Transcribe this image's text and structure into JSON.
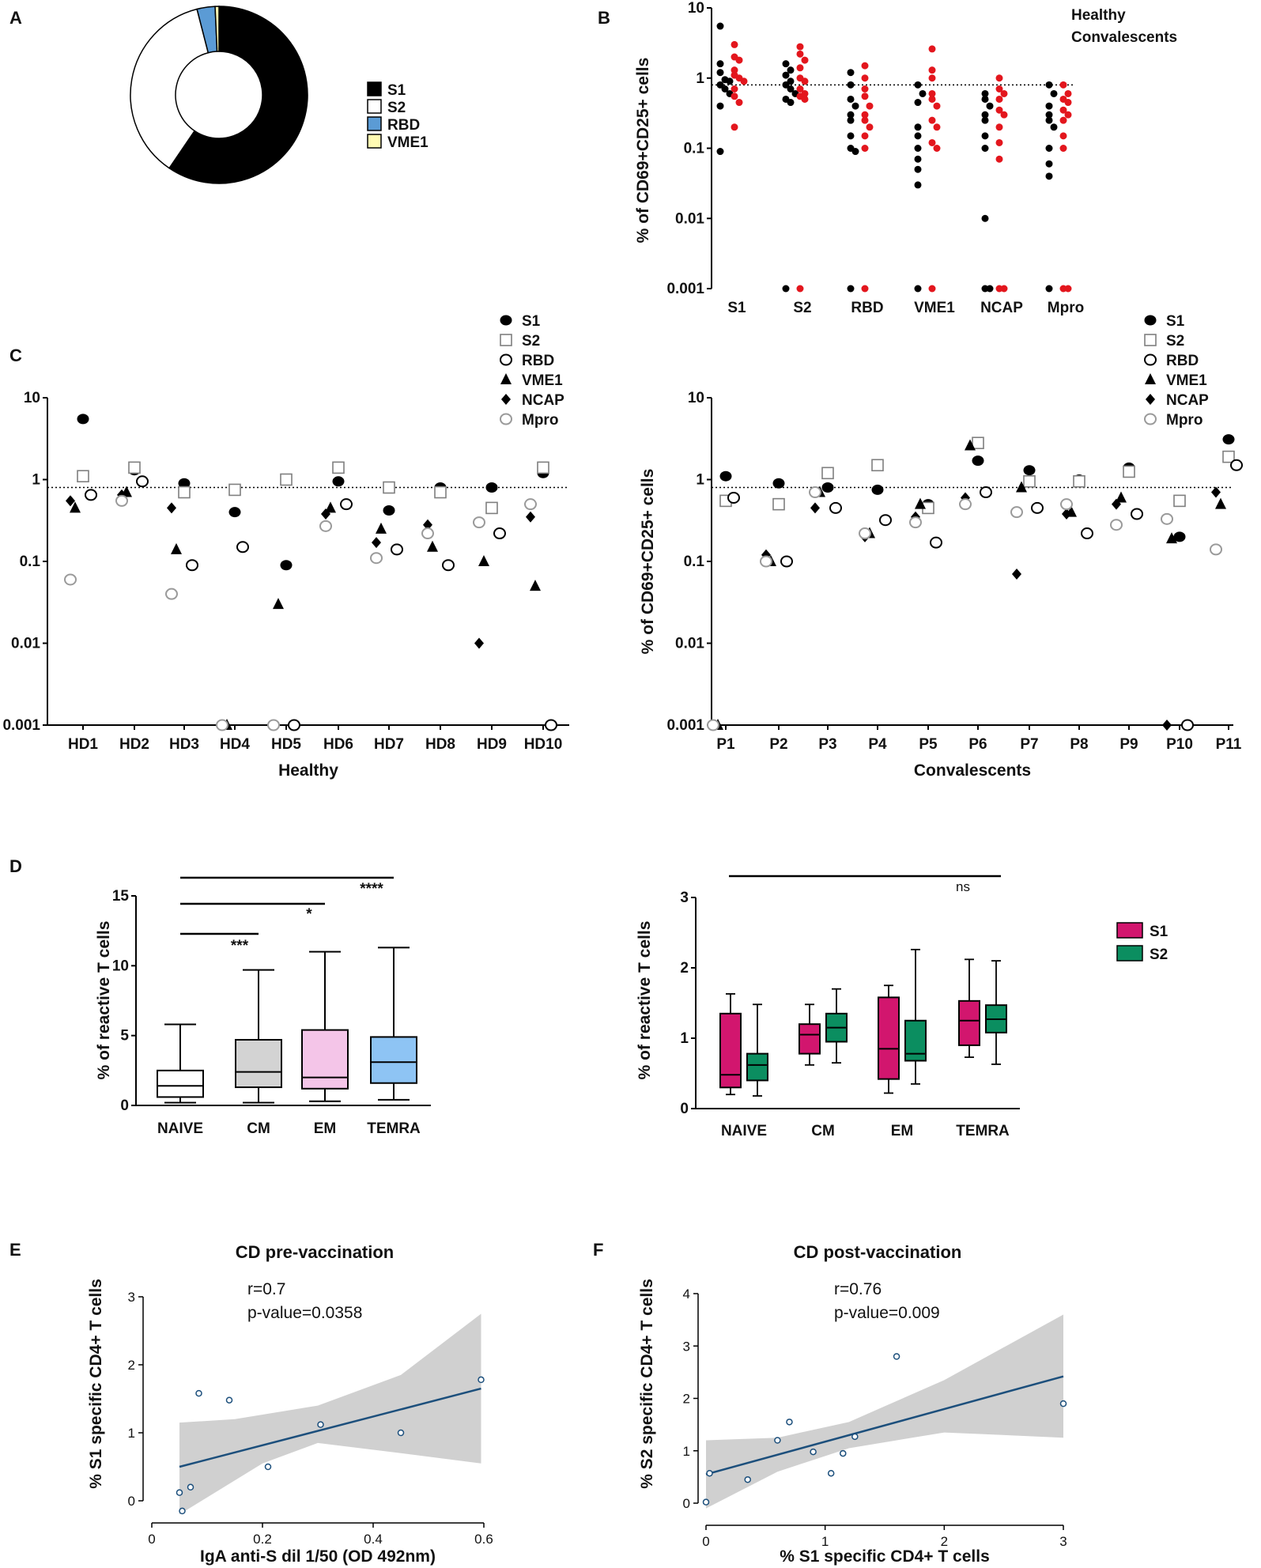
{
  "panels": {
    "A": "A",
    "B": "B",
    "C": "C",
    "D": "D",
    "E": "E",
    "F": "F"
  },
  "colors": {
    "S1": "#000000",
    "S2": "#ffffff",
    "RBD": "#5b9bd5",
    "VME1": "#fffbb3",
    "healthy": "#000000",
    "convalescent": "#e3161d",
    "box_S1": "#d2166e",
    "box_S2": "#0b8e60",
    "naive": "#ffffff",
    "cm": "#d3d3d3",
    "em": "#f4c5e8",
    "temra": "#8ec4f4",
    "fit_line": "#1c4f7c",
    "ci_band": "#d0d0d0"
  },
  "chart_data": [
    {
      "id": "A",
      "type": "pie",
      "donut": true,
      "legend": [
        "S1",
        "S2",
        "RBD",
        "VME1"
      ],
      "values": [
        59.5,
        36.5,
        3.3,
        0.7
      ]
    },
    {
      "id": "B",
      "type": "scatter",
      "yscale": "log",
      "ylabel": "% of CD69+CD25+ cells",
      "yticks": [
        "10",
        "1",
        "0.1",
        "0.01",
        "0.001"
      ],
      "ylim": [
        0.001,
        10
      ],
      "reference_line": 0.8,
      "categories": [
        "S1",
        "S2",
        "RBD",
        "VME1",
        "NCAP",
        "Mpro"
      ],
      "legend": [
        "Healthy",
        "Convalescents"
      ],
      "series": [
        {
          "name": "Healthy",
          "values": [
            [
              5.5,
              1.6,
              1.2,
              0.95,
              0.9,
              0.8,
              0.7,
              0.6,
              0.4,
              0.09
            ],
            [
              1.6,
              1.3,
              1.1,
              0.9,
              0.8,
              0.7,
              0.6,
              0.5,
              0.45,
              0.001
            ],
            [
              1.2,
              0.8,
              0.5,
              0.4,
              0.3,
              0.25,
              0.15,
              0.1,
              0.09,
              0.001
            ],
            [
              0.8,
              0.6,
              0.45,
              0.2,
              0.15,
              0.1,
              0.07,
              0.05,
              0.03,
              0.001
            ],
            [
              0.6,
              0.5,
              0.4,
              0.3,
              0.25,
              0.15,
              0.1,
              0.01,
              0.001,
              0.001
            ],
            [
              0.8,
              0.6,
              0.4,
              0.3,
              0.25,
              0.2,
              0.1,
              0.06,
              0.04,
              0.001
            ]
          ]
        },
        {
          "name": "Convalescents",
          "values": [
            [
              3.0,
              2.0,
              1.8,
              1.3,
              1.1,
              1.0,
              0.9,
              0.7,
              0.55,
              0.45,
              0.2
            ],
            [
              2.8,
              2.2,
              1.8,
              1.4,
              1.0,
              0.9,
              0.7,
              0.6,
              0.55,
              0.5,
              0.001
            ],
            [
              1.5,
              1.0,
              0.7,
              0.55,
              0.4,
              0.3,
              0.25,
              0.2,
              0.15,
              0.1,
              0.001
            ],
            [
              2.6,
              1.3,
              1.0,
              0.6,
              0.5,
              0.4,
              0.25,
              0.2,
              0.12,
              0.1,
              0.001
            ],
            [
              1.0,
              0.7,
              0.6,
              0.5,
              0.35,
              0.3,
              0.2,
              0.12,
              0.07,
              0.001,
              0.001
            ],
            [
              0.8,
              0.6,
              0.5,
              0.45,
              0.35,
              0.3,
              0.25,
              0.15,
              0.1,
              0.001,
              0.001
            ]
          ]
        }
      ]
    },
    {
      "id": "C-left",
      "type": "scatter",
      "yscale": "log",
      "ylabel": "% of CD69+CD25+ cells",
      "xlabel": "Healthy",
      "yticks": [
        "10",
        "1",
        "0.1",
        "0.01",
        "0.001"
      ],
      "ylim": [
        0.001,
        10
      ],
      "reference_line": 0.8,
      "legend": [
        "S1",
        "S2",
        "RBD",
        "VME1",
        "NCAP",
        "Mpro"
      ],
      "categories": [
        "HD1",
        "HD2",
        "HD3",
        "HD4",
        "HD5",
        "HD6",
        "HD7",
        "HD8",
        "HD9",
        "HD10"
      ],
      "series": [
        {
          "name": "S1",
          "values": [
            5.5,
            1.3,
            0.9,
            0.4,
            0.09,
            0.95,
            0.42,
            0.8,
            0.8,
            1.2
          ]
        },
        {
          "name": "S2",
          "values": [
            1.1,
            1.4,
            0.7,
            0.75,
            1.0,
            1.4,
            0.8,
            0.7,
            0.45,
            1.4
          ]
        },
        {
          "name": "RBD",
          "values": [
            0.65,
            0.95,
            0.09,
            0.15,
            0.001,
            0.5,
            0.14,
            0.09,
            0.22,
            0.001
          ]
        },
        {
          "name": "VME1",
          "values": [
            0.45,
            0.7,
            0.14,
            0.001,
            0.03,
            0.45,
            0.25,
            0.15,
            0.1,
            0.05
          ]
        },
        {
          "name": "NCAP",
          "values": [
            0.55,
            0.65,
            0.45,
            0.001,
            0.001,
            0.38,
            0.17,
            0.28,
            0.01,
            0.35
          ]
        },
        {
          "name": "Mpro",
          "values": [
            0.06,
            0.55,
            0.04,
            0.001,
            0.001,
            0.27,
            0.11,
            0.22,
            0.3,
            0.5
          ]
        }
      ]
    },
    {
      "id": "C-right",
      "type": "scatter",
      "yscale": "log",
      "ylabel": "% of CD69+CD25+ cells",
      "xlabel": "Convalescents",
      "yticks": [
        "10",
        "1",
        "0.1",
        "0.01",
        "0.001"
      ],
      "ylim": [
        0.001,
        10
      ],
      "reference_line": 0.8,
      "legend": [
        "S1",
        "S2",
        "RBD",
        "VME1",
        "NCAP",
        "Mpro"
      ],
      "categories": [
        "P1",
        "P2",
        "P3",
        "P4",
        "P5",
        "P6",
        "P7",
        "P8",
        "P9",
        "P10",
        "P11"
      ],
      "series": [
        {
          "name": "S1",
          "values": [
            1.1,
            0.9,
            0.8,
            0.75,
            0.5,
            1.7,
            1.3,
            1.0,
            1.4,
            0.2,
            3.1
          ]
        },
        {
          "name": "S2",
          "values": [
            0.55,
            0.5,
            1.2,
            1.5,
            0.45,
            2.8,
            0.95,
            0.95,
            1.25,
            0.55,
            1.9
          ]
        },
        {
          "name": "RBD",
          "values": [
            0.6,
            0.1,
            0.45,
            0.32,
            0.17,
            0.7,
            0.45,
            0.22,
            0.38,
            0.001,
            1.5
          ]
        },
        {
          "name": "VME1",
          "values": [
            0.001,
            0.1,
            0.7,
            0.22,
            0.5,
            2.6,
            0.8,
            0.4,
            0.6,
            0.19,
            0.5
          ]
        },
        {
          "name": "NCAP",
          "values": [
            0.001,
            0.12,
            0.45,
            0.2,
            0.35,
            0.6,
            0.07,
            0.38,
            0.5,
            0.001,
            0.7
          ]
        },
        {
          "name": "Mpro",
          "values": [
            0.001,
            0.1,
            0.7,
            0.22,
            0.3,
            0.5,
            0.4,
            0.5,
            0.28,
            0.33,
            0.14
          ]
        }
      ]
    },
    {
      "id": "D-left",
      "type": "box",
      "ylabel": "% of reactive T cells",
      "ylim": [
        0,
        15
      ],
      "yticks": [
        0,
        5,
        10,
        15
      ],
      "categories": [
        "NAIVE",
        "CM",
        "EM",
        "TEMRA"
      ],
      "boxes": [
        {
          "min": 0.2,
          "q1": 0.6,
          "median": 1.4,
          "q3": 2.5,
          "max": 5.8
        },
        {
          "min": 0.2,
          "q1": 1.3,
          "median": 2.4,
          "q3": 4.7,
          "max": 9.7
        },
        {
          "min": 0.3,
          "q1": 1.2,
          "median": 2.0,
          "q3": 5.4,
          "max": 11.0
        },
        {
          "min": 0.4,
          "q1": 1.6,
          "median": 3.1,
          "q3": 4.9,
          "max": 11.3
        }
      ],
      "significance": [
        {
          "from": "NAIVE",
          "to": "CM",
          "label": "***"
        },
        {
          "from": "NAIVE",
          "to": "EM",
          "label": "*"
        },
        {
          "from": "NAIVE",
          "to": "TEMRA",
          "label": "****"
        }
      ]
    },
    {
      "id": "D-right",
      "type": "box",
      "ylabel": "% of reactive T cells",
      "ylim": [
        0,
        3
      ],
      "yticks": [
        0,
        1,
        2,
        3
      ],
      "categories": [
        "NAIVE",
        "CM",
        "EM",
        "TEMRA"
      ],
      "legend": [
        "S1",
        "S2"
      ],
      "series": [
        {
          "name": "S1",
          "boxes": [
            {
              "min": 0.2,
              "q1": 0.3,
              "median": 0.48,
              "q3": 1.35,
              "max": 1.63
            },
            {
              "min": 0.62,
              "q1": 0.78,
              "median": 1.05,
              "q3": 1.2,
              "max": 1.48
            },
            {
              "min": 0.22,
              "q1": 0.42,
              "median": 0.85,
              "q3": 1.58,
              "max": 1.75
            },
            {
              "min": 0.73,
              "q1": 0.9,
              "median": 1.25,
              "q3": 1.53,
              "max": 2.12
            }
          ]
        },
        {
          "name": "S2",
          "boxes": [
            {
              "min": 0.18,
              "q1": 0.4,
              "median": 0.62,
              "q3": 0.78,
              "max": 1.48
            },
            {
              "min": 0.65,
              "q1": 0.95,
              "median": 1.15,
              "q3": 1.35,
              "max": 1.7
            },
            {
              "min": 0.35,
              "q1": 0.68,
              "median": 0.78,
              "q3": 1.25,
              "max": 2.26
            },
            {
              "min": 0.63,
              "q1": 1.08,
              "median": 1.27,
              "q3": 1.47,
              "max": 2.1
            }
          ]
        }
      ],
      "significance": [
        {
          "from": "NAIVE",
          "to": "TEMRA",
          "label": "ns"
        }
      ]
    },
    {
      "id": "E",
      "type": "scatter",
      "title": "CD pre-vaccination",
      "xlabel": "IgA anti-S dil 1/50 (OD 492nm)",
      "ylabel": "% S1 specific CD4+ T cells",
      "xlim": [
        0,
        0.6
      ],
      "ylim": [
        0,
        3
      ],
      "xticks": [
        "0",
        "0.2",
        "0.4",
        "0.6"
      ],
      "yticks": [
        "0",
        "1",
        "2",
        "3"
      ],
      "r": "r=0.7",
      "p": "p-value=0.0358",
      "points": [
        [
          0.05,
          0.12
        ],
        [
          0.055,
          -0.15
        ],
        [
          0.07,
          0.2
        ],
        [
          0.085,
          1.58
        ],
        [
          0.14,
          1.48
        ],
        [
          0.21,
          0.5
        ],
        [
          0.305,
          1.12
        ],
        [
          0.45,
          1.0
        ],
        [
          0.595,
          1.78
        ]
      ],
      "fit": {
        "x0": 0.05,
        "y0": 0.5,
        "x1": 0.595,
        "y1": 1.65
      },
      "ci": {
        "lower": [
          [
            0.05,
            -0.2
          ],
          [
            0.2,
            0.55
          ],
          [
            0.3,
            0.85
          ],
          [
            0.45,
            0.7
          ],
          [
            0.595,
            0.55
          ]
        ],
        "upper": [
          [
            0.05,
            1.15
          ],
          [
            0.15,
            1.2
          ],
          [
            0.3,
            1.4
          ],
          [
            0.45,
            1.85
          ],
          [
            0.595,
            2.75
          ]
        ]
      }
    },
    {
      "id": "F",
      "type": "scatter",
      "title": "CD post-vaccination",
      "xlabel": "% S1 specific CD4+ T cells",
      "ylabel": "% S2 specific CD4+ T cells",
      "xlim": [
        0,
        3
      ],
      "ylim": [
        0,
        4
      ],
      "xticks": [
        "0",
        "1",
        "2",
        "3"
      ],
      "yticks": [
        "0",
        "1",
        "2",
        "3",
        "4"
      ],
      "r": "r=0.76",
      "p": "p-value=0.009",
      "points": [
        [
          0.0,
          0.02
        ],
        [
          0.03,
          0.57
        ],
        [
          0.35,
          0.45
        ],
        [
          0.6,
          1.2
        ],
        [
          0.7,
          1.55
        ],
        [
          0.9,
          0.98
        ],
        [
          1.05,
          0.57
        ],
        [
          1.15,
          0.95
        ],
        [
          1.25,
          1.27
        ],
        [
          1.6,
          2.8
        ],
        [
          3.0,
          1.9
        ]
      ],
      "fit": {
        "x0": 0.0,
        "y0": 0.55,
        "x1": 3.0,
        "y1": 2.42
      },
      "ci": {
        "lower": [
          [
            0.0,
            -0.1
          ],
          [
            0.6,
            0.6
          ],
          [
            1.2,
            1.05
          ],
          [
            2.0,
            1.35
          ],
          [
            3.0,
            1.25
          ]
        ],
        "upper": [
          [
            0.0,
            1.2
          ],
          [
            0.6,
            1.25
          ],
          [
            1.2,
            1.55
          ],
          [
            2.0,
            2.35
          ],
          [
            3.0,
            3.6
          ]
        ]
      }
    }
  ]
}
